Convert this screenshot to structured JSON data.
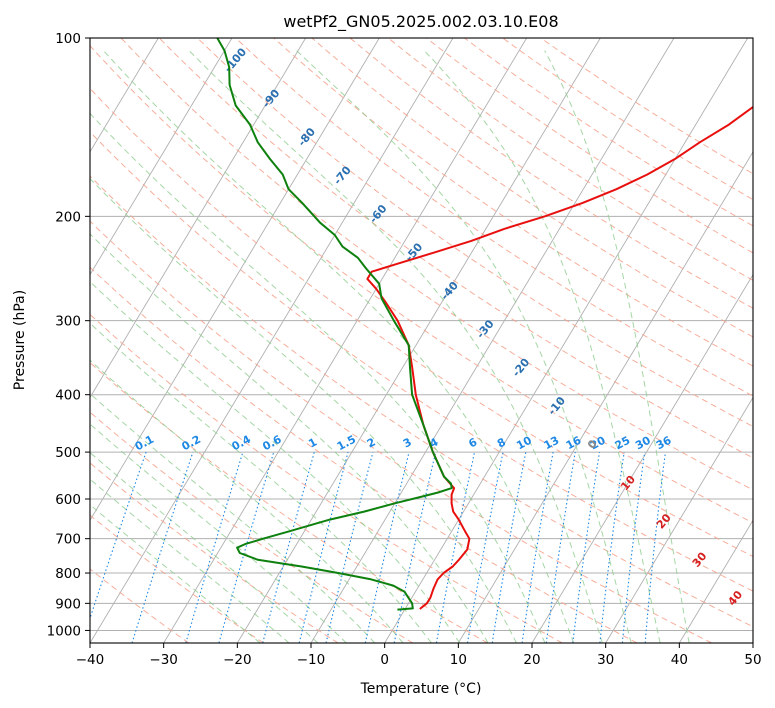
{
  "chart_data": {
    "type": "line",
    "title": "wetPf2_GN05.2025.002.03.10.E08",
    "xlabel": "Temperature (°C)",
    "ylabel": "Pressure (hPa)",
    "xlim": [
      -40,
      50
    ],
    "ylim": [
      1050,
      100
    ],
    "y_scale": "log",
    "skew": "skew-T log-P",
    "grid": true,
    "x_ticks": [
      -40,
      -30,
      -20,
      -10,
      0,
      10,
      20,
      30,
      40,
      50
    ],
    "x_tick_labels": [
      "−40",
      "−30",
      "−20",
      "−10",
      "0",
      "10",
      "20",
      "30",
      "40",
      "50"
    ],
    "y_ticks": [
      100,
      200,
      300,
      400,
      500,
      600,
      700,
      800,
      900,
      1000
    ],
    "y_tick_labels": [
      "100",
      "200",
      "300",
      "400",
      "500",
      "600",
      "700",
      "800",
      "900",
      "1000"
    ],
    "series": [
      {
        "color": "#e8100e",
        "points": [
          [
            920,
            2
          ],
          [
            900,
            2.5
          ],
          [
            880,
            2.5
          ],
          [
            850,
            2.2
          ],
          [
            820,
            2
          ],
          [
            800,
            2.3
          ],
          [
            780,
            3
          ],
          [
            760,
            3.3
          ],
          [
            730,
            3.6
          ],
          [
            700,
            3
          ],
          [
            680,
            1.8
          ],
          [
            650,
            0
          ],
          [
            630,
            -1.4
          ],
          [
            610,
            -2.3
          ],
          [
            590,
            -3
          ],
          [
            575,
            -3.2
          ],
          [
            550,
            -5.5
          ],
          [
            500,
            -9
          ],
          [
            450,
            -12.5
          ],
          [
            400,
            -16
          ],
          [
            360,
            -18.7
          ],
          [
            330,
            -21
          ],
          [
            300,
            -24.5
          ],
          [
            280,
            -27.5
          ],
          [
            265,
            -30
          ],
          [
            255,
            -32
          ],
          [
            248,
            -32
          ],
          [
            240,
            -29
          ],
          [
            230,
            -25
          ],
          [
            220,
            -21
          ],
          [
            210,
            -17.5
          ],
          [
            200,
            -13
          ],
          [
            190,
            -9
          ],
          [
            180,
            -5.5
          ],
          [
            170,
            -2.5
          ],
          [
            160,
            0
          ],
          [
            150,
            2
          ],
          [
            140,
            4.5
          ],
          [
            130,
            6.5
          ],
          [
            120,
            8.3
          ],
          [
            110,
            9.5
          ],
          [
            105,
            10
          ],
          [
            100,
            10.5
          ]
        ]
      },
      {
        "color": "#0d800d",
        "points": [
          [
            922,
            -1
          ],
          [
            920,
            0
          ],
          [
            918,
            1
          ],
          [
            900,
            0.5
          ],
          [
            880,
            -0.5
          ],
          [
            860,
            -1.5
          ],
          [
            840,
            -3.5
          ],
          [
            820,
            -7
          ],
          [
            800,
            -12
          ],
          [
            780,
            -17.5
          ],
          [
            760,
            -24
          ],
          [
            740,
            -27
          ],
          [
            725,
            -27.8
          ],
          [
            715,
            -27
          ],
          [
            700,
            -25
          ],
          [
            680,
            -22
          ],
          [
            650,
            -17.5
          ],
          [
            630,
            -13.5
          ],
          [
            610,
            -10
          ],
          [
            595,
            -7
          ],
          [
            585,
            -5
          ],
          [
            575,
            -3.5
          ],
          [
            565,
            -4
          ],
          [
            550,
            -5.5
          ],
          [
            500,
            -9
          ],
          [
            450,
            -12.5
          ],
          [
            400,
            -16.5
          ],
          [
            360,
            -19
          ],
          [
            330,
            -21
          ],
          [
            300,
            -25
          ],
          [
            275,
            -28.5
          ],
          [
            260,
            -30
          ],
          [
            245,
            -33
          ],
          [
            235,
            -35
          ],
          [
            225,
            -38
          ],
          [
            215,
            -40
          ],
          [
            205,
            -43
          ],
          [
            190,
            -47
          ],
          [
            180,
            -50
          ],
          [
            170,
            -52
          ],
          [
            160,
            -55
          ],
          [
            150,
            -58
          ],
          [
            140,
            -60.5
          ],
          [
            130,
            -64
          ],
          [
            120,
            -66.5
          ],
          [
            112,
            -68
          ],
          [
            105,
            -70
          ],
          [
            100,
            -72
          ]
        ]
      }
    ],
    "annotations": {
      "dry_adiabat_labels": [
        "-100",
        "-90",
        "-80",
        "-70",
        "-60",
        "-50",
        "-40",
        "-30",
        "-20",
        "-10",
        "0",
        "10",
        "20",
        "30",
        "40"
      ],
      "mixing_ratio_labels": [
        "0.1",
        "0.2",
        "0.4",
        "0.6",
        "1",
        "1.5",
        "2",
        "3",
        "4",
        "6",
        "8",
        "10",
        "13",
        "16",
        "20",
        "25",
        "30",
        "36"
      ]
    },
    "colors": {
      "temperature": "#e8100e",
      "dewpoint": "#0d800d",
      "isotherm": "#b0b0b0",
      "dry_adiabat": "#f4a08a",
      "moist_adiabat": "#8fcc8f",
      "mixing_ratio": "#1e88e5",
      "adiabat_label": "#2a6fb0",
      "warm_label": "#d62020",
      "zero_label": "#8a8a8a"
    }
  }
}
